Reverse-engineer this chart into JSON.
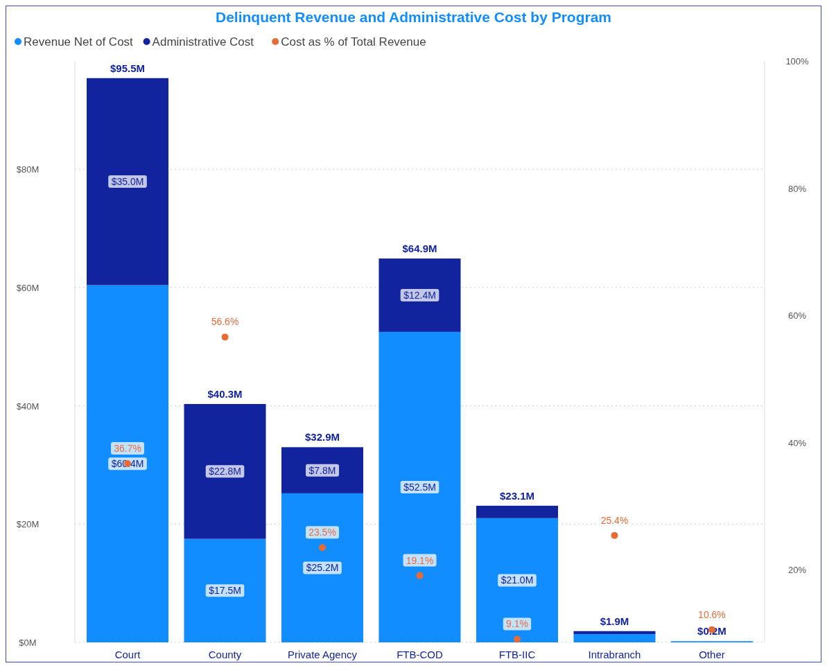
{
  "chart_data": {
    "type": "bar",
    "title": "Delinquent Revenue and Administrative Cost by Program",
    "categories": [
      "Court",
      "County",
      "Private Agency",
      "FTB-COD",
      "FTB-IIC",
      "Intrabranch",
      "Other"
    ],
    "stacked": true,
    "series": [
      {
        "name": "Revenue Net of Cost",
        "color": "#118dff",
        "values": [
          60.4,
          17.5,
          25.2,
          52.5,
          21.0,
          1.4,
          0.2
        ],
        "value_labels": [
          "$60.4M",
          "$17.5M",
          "$25.2M",
          "$52.5M",
          "$21.0M",
          null,
          null
        ]
      },
      {
        "name": "Administrative Cost",
        "color": "#12239e",
        "values": [
          35.0,
          22.8,
          7.8,
          12.4,
          2.1,
          0.5,
          0.0
        ],
        "value_labels": [
          "$35.0M",
          "$22.8M",
          "$7.8M",
          "$12.4M",
          null,
          null,
          null
        ]
      },
      {
        "name": "Cost as % of Total Revenue",
        "color": "#e66c37",
        "type": "scatter",
        "axis": "y2",
        "marker": "circle",
        "values": [
          36.7,
          56.6,
          23.5,
          19.1,
          9.1,
          25.4,
          10.6
        ],
        "value_labels": [
          "36.7%",
          "56.6%",
          "23.5%",
          "19.1%",
          "9.1%",
          "25.4%",
          "10.6%"
        ]
      }
    ],
    "totals": [
      "$95.5M",
      "$40.3M",
      "$32.9M",
      "$64.9M",
      "$23.1M",
      "$1.9M",
      "$0.2M"
    ],
    "ylim": [
      0,
      98.3
    ],
    "yticks": [
      {
        "value": 0,
        "label": "$0M"
      },
      {
        "value": 20,
        "label": "$20M"
      },
      {
        "value": 40,
        "label": "$40M"
      },
      {
        "value": 60,
        "label": "$60M"
      },
      {
        "value": 80,
        "label": "$80M"
      }
    ],
    "y2lim": [
      8.6,
      100
    ],
    "y2ticks": [
      {
        "value": 20,
        "label": "20%"
      },
      {
        "value": 40,
        "label": "40%"
      },
      {
        "value": 60,
        "label": "60%"
      },
      {
        "value": 80,
        "label": "80%"
      },
      {
        "value": 100,
        "label": "100%"
      }
    ],
    "grid": "y",
    "legend": "top left"
  }
}
